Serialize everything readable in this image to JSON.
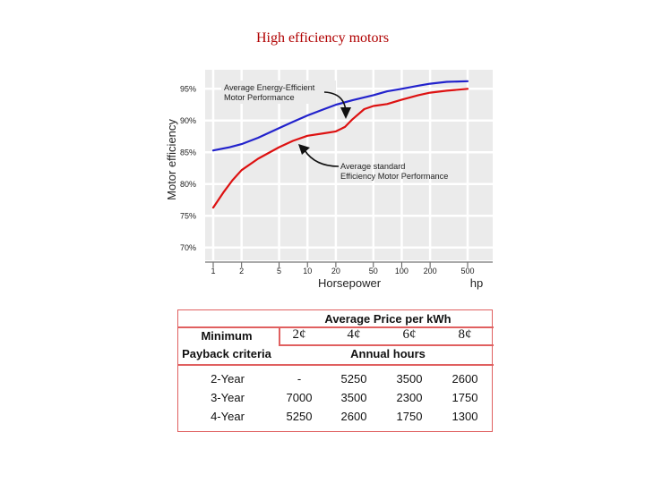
{
  "slide": {
    "title": "High efficiency motors"
  },
  "chart_data": {
    "type": "line",
    "ylabel": "Motor efficiency",
    "xlabel": "Horsepower",
    "x_unit": "hp",
    "x_ticks": [
      "1",
      "2",
      "5",
      "10",
      "20",
      "50",
      "100",
      "200",
      "500"
    ],
    "y_ticks": [
      "70%",
      "75%",
      "80%",
      "85%",
      "90%",
      "95%"
    ],
    "ylim": [
      68,
      98
    ],
    "grid": true,
    "series": [
      {
        "color": "#2222cc",
        "x": [
          1,
          1.5,
          2,
          3,
          5,
          7,
          10,
          15,
          20,
          30,
          50,
          70,
          100,
          150,
          200,
          300,
          500
        ],
        "y": [
          85.3,
          85.8,
          86.3,
          87.3,
          88.8,
          89.8,
          90.8,
          91.8,
          92.5,
          93.2,
          94.0,
          94.6,
          95.0,
          95.5,
          95.8,
          96.1,
          96.2
        ]
      },
      {
        "color": "#dd1111",
        "x": [
          1,
          1.3,
          1.6,
          2,
          3,
          5,
          7,
          10,
          15,
          20,
          25,
          30,
          40,
          50,
          70,
          100,
          150,
          200,
          300,
          500
        ],
        "y": [
          76.3,
          78.8,
          80.6,
          82.2,
          84.0,
          85.8,
          86.8,
          87.6,
          88.0,
          88.3,
          89.0,
          90.2,
          91.8,
          92.3,
          92.6,
          93.3,
          94.0,
          94.4,
          94.7,
          95.0
        ]
      }
    ],
    "annotations": [
      {
        "text": [
          "Average Energy-Efficient",
          "Motor Performance"
        ]
      },
      {
        "text": [
          "Average standard",
          "Efficiency Motor Performance"
        ]
      }
    ]
  },
  "table": {
    "price_header": "Average Price per kWh",
    "row_header": [
      "Minimum",
      "Payback criteria"
    ],
    "prices": [
      "2¢",
      "4¢",
      "6¢",
      "8¢"
    ],
    "hours_header": "Annual hours",
    "rows": [
      {
        "label": "2-Year",
        "values": [
          "-",
          "5250",
          "3500",
          "2600"
        ]
      },
      {
        "label": "3-Year",
        "values": [
          "7000",
          "3500",
          "2300",
          "1750"
        ]
      },
      {
        "label": "4-Year",
        "values": [
          "5250",
          "2600",
          "1750",
          "1300"
        ]
      }
    ]
  }
}
